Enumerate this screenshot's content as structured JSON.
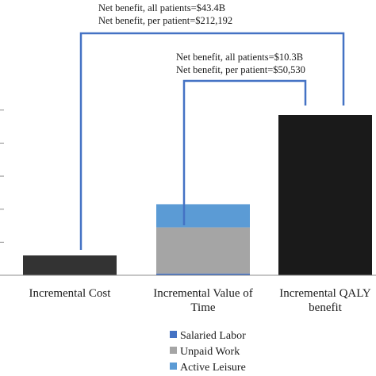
{
  "chart_data": {
    "type": "bar",
    "stacked": true,
    "categories": [
      [
        "Incremental Cost"
      ],
      [
        "Incremental Value of",
        "Time"
      ],
      [
        "Incremental QALY",
        "benefit"
      ]
    ],
    "series": [
      {
        "name": "",
        "color": "#333333",
        "values": [
          6,
          0,
          0
        ]
      },
      {
        "name": "",
        "color": "#1a1a1a",
        "values": [
          0,
          0,
          48.5
        ]
      },
      {
        "name": "Salaried Labor",
        "color": "#4472c4",
        "values": [
          0,
          0.5,
          0
        ]
      },
      {
        "name": "Unpaid Work",
        "color": "#a5a5a5",
        "values": [
          0,
          14,
          0
        ]
      },
      {
        "name": "Active Leisure",
        "color": "#5b9bd5",
        "values": [
          0,
          7,
          0
        ]
      }
    ],
    "ylim": [
      0,
      50
    ],
    "legend_position": "bottom",
    "annotations": [
      {
        "lines": [
          "Net benefit, all patients=$43.4B",
          "Net benefit, per patient=$212,192"
        ]
      },
      {
        "lines": [
          "Net benefit, all patients=$10.3B",
          "Net benefit, per patient=$50,530"
        ]
      }
    ],
    "bracket_color": "#4472c4"
  }
}
